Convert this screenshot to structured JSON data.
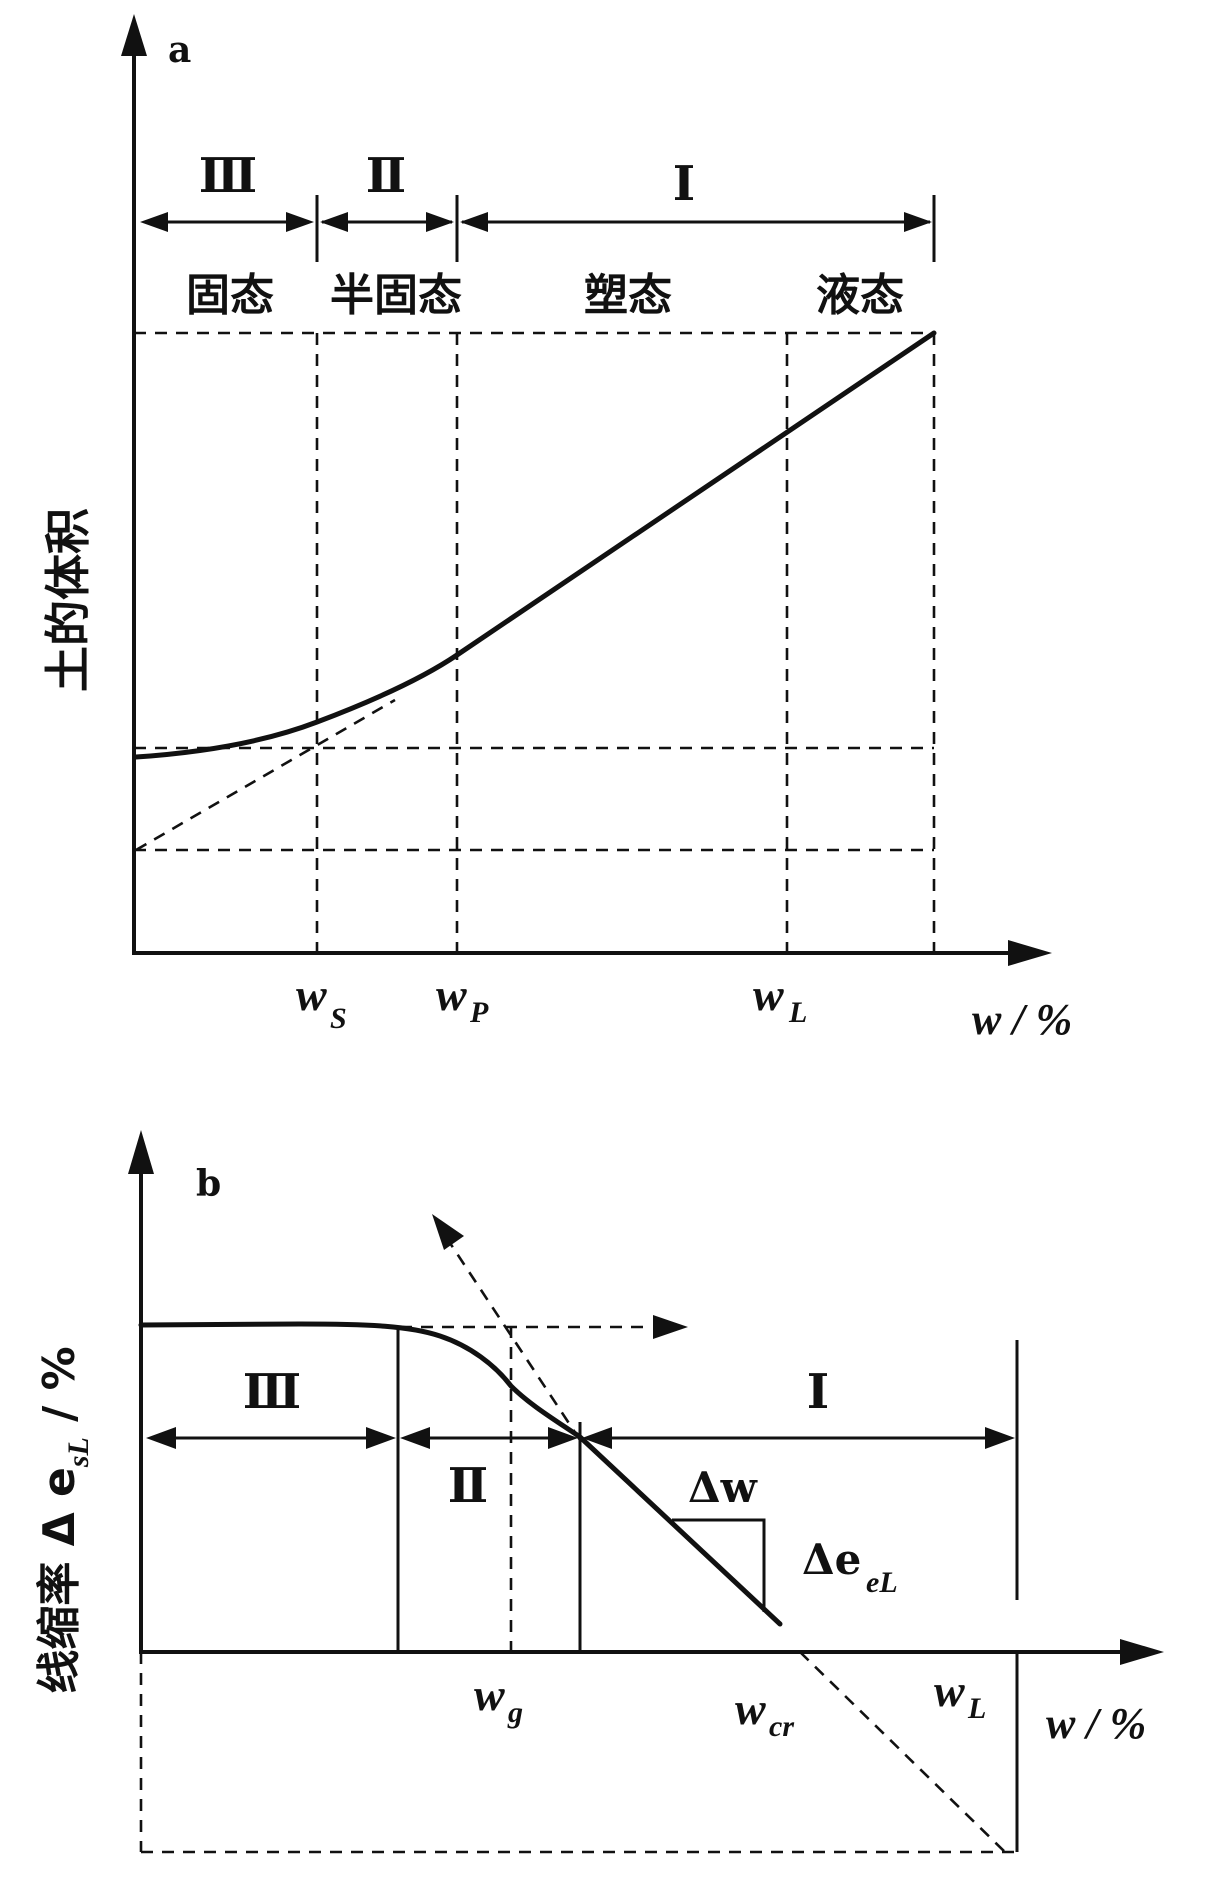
{
  "panel_a": {
    "letter": "a",
    "y_axis_label": "土的体积",
    "x_axis_label": "w / %",
    "regions": [
      {
        "numeral": "Ⅲ",
        "state": "固态"
      },
      {
        "numeral": "Ⅱ",
        "state": "半固态"
      },
      {
        "numeral": "Ⅰ",
        "state": "塑态"
      }
    ],
    "extra_state": "液态",
    "ticks": [
      {
        "main": "w",
        "sub": "S"
      },
      {
        "main": "w",
        "sub": "P"
      },
      {
        "main": "w",
        "sub": "L"
      }
    ]
  },
  "panel_b": {
    "letter": "b",
    "y_axis_label": "线缩率 Δ e",
    "y_axis_sub": "sL",
    "y_axis_unit": " / %",
    "x_axis_label": "w / %",
    "regions": [
      "Ⅲ",
      "Ⅱ",
      "Ⅰ"
    ],
    "delta_w": "Δw",
    "delta_e_main": "Δe",
    "delta_e_sub": "eL",
    "ticks": [
      {
        "main": "w",
        "sub": "g"
      },
      {
        "main": "w",
        "sub": "cr"
      },
      {
        "main": "w",
        "sub": "L"
      }
    ]
  }
}
